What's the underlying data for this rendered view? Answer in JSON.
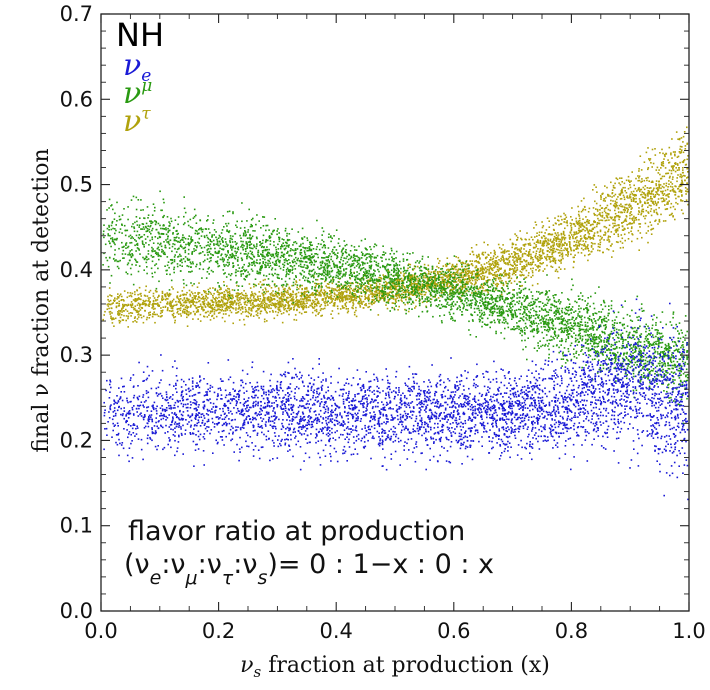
{
  "chart_data": {
    "type": "scatter",
    "title": "",
    "xlabel": "ν_s fraction at production (x)",
    "xlabel_parts": {
      "nu": "ν",
      "sub": "s",
      "rest": " fraction at production (x)"
    },
    "ylabel": "final ν fraction at detection",
    "xlim": [
      0.0,
      1.0
    ],
    "ylim": [
      0.0,
      0.7
    ],
    "xticks": [
      "0.0",
      "0.2",
      "0.4",
      "0.6",
      "0.8",
      "1.0"
    ],
    "yticks": [
      "0.0",
      "0.1",
      "0.2",
      "0.3",
      "0.4",
      "0.5",
      "0.6",
      "0.7"
    ],
    "legend": {
      "heading": "NH",
      "entries": [
        {
          "symbol": "ν",
          "sub": "e",
          "color": "#1a1ad6"
        },
        {
          "symbol": "ν",
          "sub": "μ",
          "color": "#2a9a12"
        },
        {
          "symbol": "ν",
          "sub": "τ",
          "color": "#b0a20c"
        }
      ]
    },
    "annotation": {
      "line1": "flavor ratio at production",
      "line2": "(νe:νμ:ντ:νs)= 0 : 1−x : 0 : x"
    },
    "series": [
      {
        "name": "ν_e",
        "color": "#1a1ad6",
        "x": [
          0.0,
          0.1,
          0.2,
          0.3,
          0.4,
          0.5,
          0.6,
          0.7,
          0.8,
          0.9,
          1.0
        ],
        "y_center": [
          0.235,
          0.235,
          0.235,
          0.235,
          0.233,
          0.232,
          0.232,
          0.233,
          0.245,
          0.27,
          0.24
        ],
        "y_halfwidth": [
          0.075,
          0.075,
          0.075,
          0.075,
          0.075,
          0.075,
          0.075,
          0.075,
          0.09,
          0.12,
          0.14
        ]
      },
      {
        "name": "ν_μ",
        "color": "#2a9a12",
        "x": [
          0.0,
          0.1,
          0.2,
          0.3,
          0.4,
          0.5,
          0.6,
          0.7,
          0.8,
          0.9,
          1.0
        ],
        "y_center": [
          0.44,
          0.435,
          0.425,
          0.415,
          0.405,
          0.39,
          0.375,
          0.355,
          0.335,
          0.31,
          0.29
        ],
        "y_halfwidth": [
          0.08,
          0.075,
          0.07,
          0.06,
          0.055,
          0.05,
          0.05,
          0.055,
          0.06,
          0.07,
          0.08
        ]
      },
      {
        "name": "ν_τ",
        "color": "#b0a20c",
        "x": [
          0.0,
          0.1,
          0.2,
          0.3,
          0.4,
          0.5,
          0.6,
          0.7,
          0.8,
          0.9,
          1.0
        ],
        "y_center": [
          0.355,
          0.36,
          0.362,
          0.365,
          0.37,
          0.378,
          0.39,
          0.41,
          0.44,
          0.475,
          0.52
        ],
        "y_halfwidth": [
          0.035,
          0.03,
          0.03,
          0.03,
          0.03,
          0.032,
          0.035,
          0.045,
          0.055,
          0.065,
          0.08
        ]
      }
    ],
    "points_per_series": 4200
  }
}
